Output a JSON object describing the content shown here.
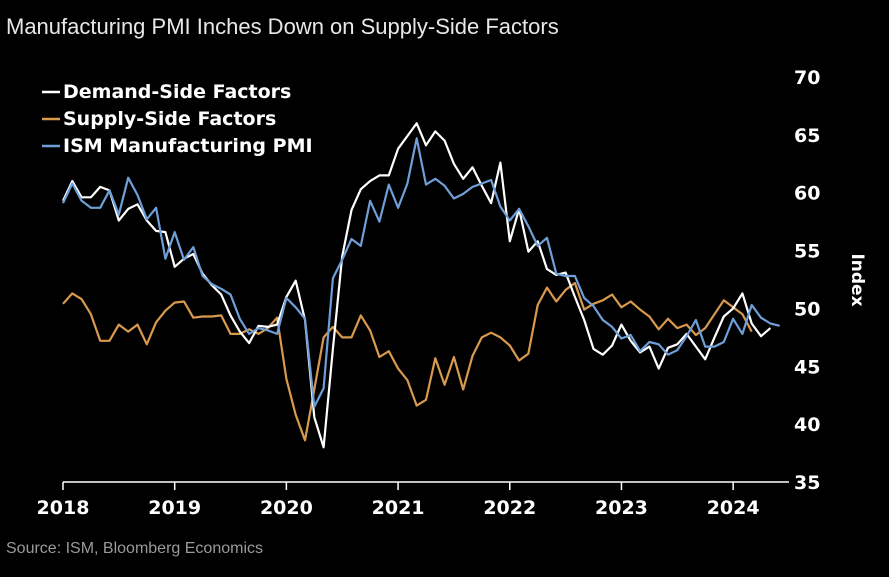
{
  "title": "Manufacturing PMI Inches Down on Supply-Side Factors",
  "source": "Source: ISM, Bloomberg Economics",
  "chart_data": {
    "type": "line",
    "title": "Manufacturing PMI Inches Down on Supply-Side Factors",
    "ylabel": "Index",
    "xlabel": "",
    "ylim": [
      35,
      70
    ],
    "yticks": [
      35,
      40,
      45,
      50,
      55,
      60,
      65,
      70
    ],
    "xlim": [
      2018.0,
      2024.5
    ],
    "xticks": [
      2018,
      2019,
      2020,
      2021,
      2022,
      2023,
      2024
    ],
    "grid": false,
    "legend_position": "top-left",
    "x_start": 2018.0,
    "x_step": 0.08333,
    "series": [
      {
        "name": "Demand-Side Factors",
        "color": "#ffffff",
        "values": [
          59.3,
          61.0,
          59.6,
          59.6,
          60.5,
          60.2,
          57.6,
          58.6,
          59.0,
          57.6,
          56.7,
          56.6,
          53.6,
          54.3,
          54.7,
          53.0,
          52.0,
          51.2,
          49.4,
          48.0,
          47.0,
          48.5,
          48.4,
          48.6,
          51.0,
          52.4,
          49.0,
          40.6,
          38.0,
          46.5,
          54.5,
          58.5,
          60.3,
          61.0,
          61.5,
          61.5,
          63.8,
          64.9,
          66.0,
          64.1,
          65.3,
          64.5,
          62.5,
          61.2,
          62.2,
          60.6,
          59.1,
          62.6,
          55.8,
          58.6,
          54.9,
          55.8,
          53.4,
          52.9,
          53.1,
          51.0,
          49.0,
          46.5,
          46.0,
          46.8,
          48.6,
          47.2,
          46.2,
          46.7,
          44.8,
          46.6,
          46.9,
          47.8,
          46.7,
          45.6,
          47.5,
          49.3,
          50.0,
          51.3,
          48.7,
          47.6,
          48.3
        ],
        "line_width": 2.2
      },
      {
        "name": "Supply-Side Factors",
        "color": "#d99a4e",
        "values": [
          50.4,
          51.3,
          50.8,
          49.5,
          47.2,
          47.2,
          48.6,
          48.0,
          48.6,
          46.9,
          48.8,
          49.8,
          50.5,
          50.6,
          49.2,
          49.3,
          49.3,
          49.4,
          47.8,
          47.8,
          48.2,
          47.8,
          48.3,
          49.2,
          43.9,
          40.8,
          38.6,
          43.0,
          47.5,
          48.4,
          47.5,
          47.5,
          49.4,
          48.1,
          45.8,
          46.3,
          44.8,
          43.8,
          41.6,
          42.1,
          45.7,
          43.4,
          45.8,
          43.0,
          45.9,
          47.5,
          47.9,
          47.5,
          46.8,
          45.5,
          46.1,
          50.3,
          51.8,
          50.6,
          51.6,
          52.2,
          49.9,
          50.4,
          50.7,
          51.2,
          50.1,
          50.6,
          49.9,
          49.3,
          48.2,
          49.1,
          48.3,
          48.6,
          47.7,
          48.3,
          49.5,
          50.7,
          50.1,
          49.5,
          48.0
        ],
        "line_width": 2.2
      },
      {
        "name": "ISM Manufacturing PMI",
        "color": "#6e9fd8",
        "values": [
          59.1,
          60.8,
          59.3,
          58.7,
          58.7,
          60.2,
          58.1,
          61.3,
          59.8,
          57.7,
          58.7,
          54.3,
          56.6,
          54.2,
          55.3,
          52.8,
          52.1,
          51.7,
          51.2,
          49.1,
          47.8,
          48.3,
          48.1,
          47.8,
          50.9,
          50.1,
          49.1,
          41.5,
          43.1,
          52.6,
          54.2,
          56.0,
          55.4,
          59.3,
          57.5,
          60.7,
          58.7,
          60.8,
          64.7,
          60.7,
          61.2,
          60.6,
          59.5,
          59.9,
          60.5,
          60.8,
          61.1,
          58.8,
          57.6,
          58.6,
          57.1,
          55.4,
          56.1,
          53.0,
          52.8,
          52.8,
          50.9,
          50.2,
          49.0,
          48.4,
          47.4,
          47.7,
          46.3,
          47.1,
          46.9,
          46.0,
          46.4,
          47.6,
          49.0,
          46.7,
          46.7,
          47.1,
          49.1,
          47.8,
          50.3,
          49.2,
          48.7,
          48.5
        ],
        "line_width": 2.2
      }
    ]
  }
}
